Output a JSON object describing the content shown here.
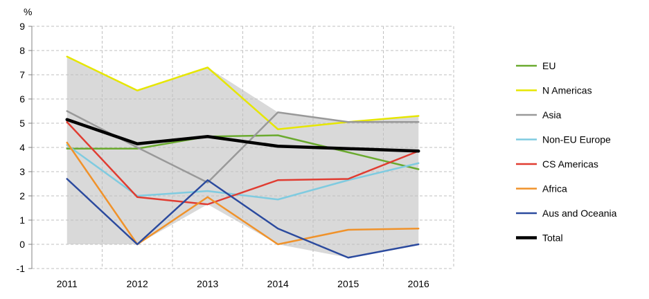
{
  "chart_data": {
    "type": "line",
    "title": "",
    "ylabel": "%",
    "xlabel": "",
    "categories": [
      "2011",
      "2012",
      "2013",
      "2014",
      "2015",
      "2016"
    ],
    "ylim": [
      -1,
      9
    ],
    "yticks": [
      -1,
      0,
      1,
      2,
      3,
      4,
      5,
      6,
      7,
      8,
      9
    ],
    "grid": true,
    "legend_position": "right",
    "range_band": {
      "fill": "#d9d9d9",
      "upper": [
        7.75,
        6.35,
        7.3,
        5.45,
        5.05,
        5.3
      ],
      "lower": [
        0,
        0,
        1.65,
        0,
        -0.55,
        0
      ]
    },
    "series": [
      {
        "name": "EU",
        "color": "#6aaa2e",
        "width": 2.5,
        "values": [
          3.95,
          3.95,
          4.45,
          4.5,
          3.8,
          3.1
        ]
      },
      {
        "name": "N Americas",
        "color": "#e6e600",
        "width": 2.5,
        "values": [
          7.75,
          6.35,
          7.3,
          4.75,
          5.05,
          5.3
        ]
      },
      {
        "name": "Asia",
        "color": "#999999",
        "width": 2.5,
        "values": [
          5.5,
          4.0,
          2.55,
          5.45,
          5.05,
          5.05
        ]
      },
      {
        "name": "Non-EU Europe",
        "color": "#7fcbe0",
        "width": 2.5,
        "values": [
          4.1,
          2.0,
          2.2,
          1.85,
          2.65,
          3.35
        ]
      },
      {
        "name": "CS Americas",
        "color": "#e03c31",
        "width": 2.5,
        "values": [
          5.05,
          1.95,
          1.65,
          2.65,
          2.7,
          3.85
        ]
      },
      {
        "name": "Africa",
        "color": "#f0922a",
        "width": 2.5,
        "values": [
          4.2,
          0.0,
          1.95,
          0.0,
          0.6,
          0.65
        ]
      },
      {
        "name": "Aus and Oceania",
        "color": "#2b4a9e",
        "width": 2.5,
        "values": [
          2.7,
          0.0,
          2.65,
          0.65,
          -0.55,
          0.0
        ]
      },
      {
        "name": "Total",
        "color": "#000000",
        "width": 4.5,
        "values": [
          5.15,
          4.15,
          4.45,
          4.05,
          3.95,
          3.85
        ]
      }
    ]
  }
}
